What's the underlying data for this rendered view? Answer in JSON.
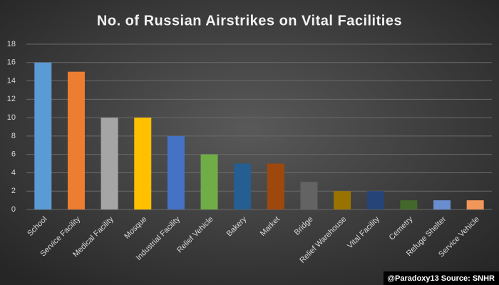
{
  "chart_data": {
    "type": "bar",
    "title": "No. of Russian  Airstrikes  on Vital Facilities",
    "categories": [
      "School",
      "Service Facility",
      "Medical Facility",
      "Mosque",
      "Industrial Facility",
      "Relief Vehicle",
      "Bakery",
      "Market",
      "Bridge",
      "Relief Warehouse",
      "Vital Facility",
      "Cemetry",
      "Refuge Shelter",
      "Service Vehicle"
    ],
    "values": [
      16,
      15,
      10,
      10,
      8,
      6,
      5,
      5,
      3,
      2,
      2,
      1,
      1,
      1
    ],
    "colors": [
      "#5b9bd5",
      "#ed7d31",
      "#a5a5a5",
      "#ffc000",
      "#4472c4",
      "#70ad47",
      "#255e91",
      "#9e480e",
      "#636363",
      "#997300",
      "#264478",
      "#43682b",
      "#698ed0",
      "#f1975a"
    ],
    "ylim": [
      0,
      18
    ],
    "yticks": [
      0,
      2,
      4,
      6,
      8,
      10,
      12,
      14,
      16,
      18
    ],
    "grid": true,
    "source": "@Paradoxy13 Source: SNHR"
  }
}
